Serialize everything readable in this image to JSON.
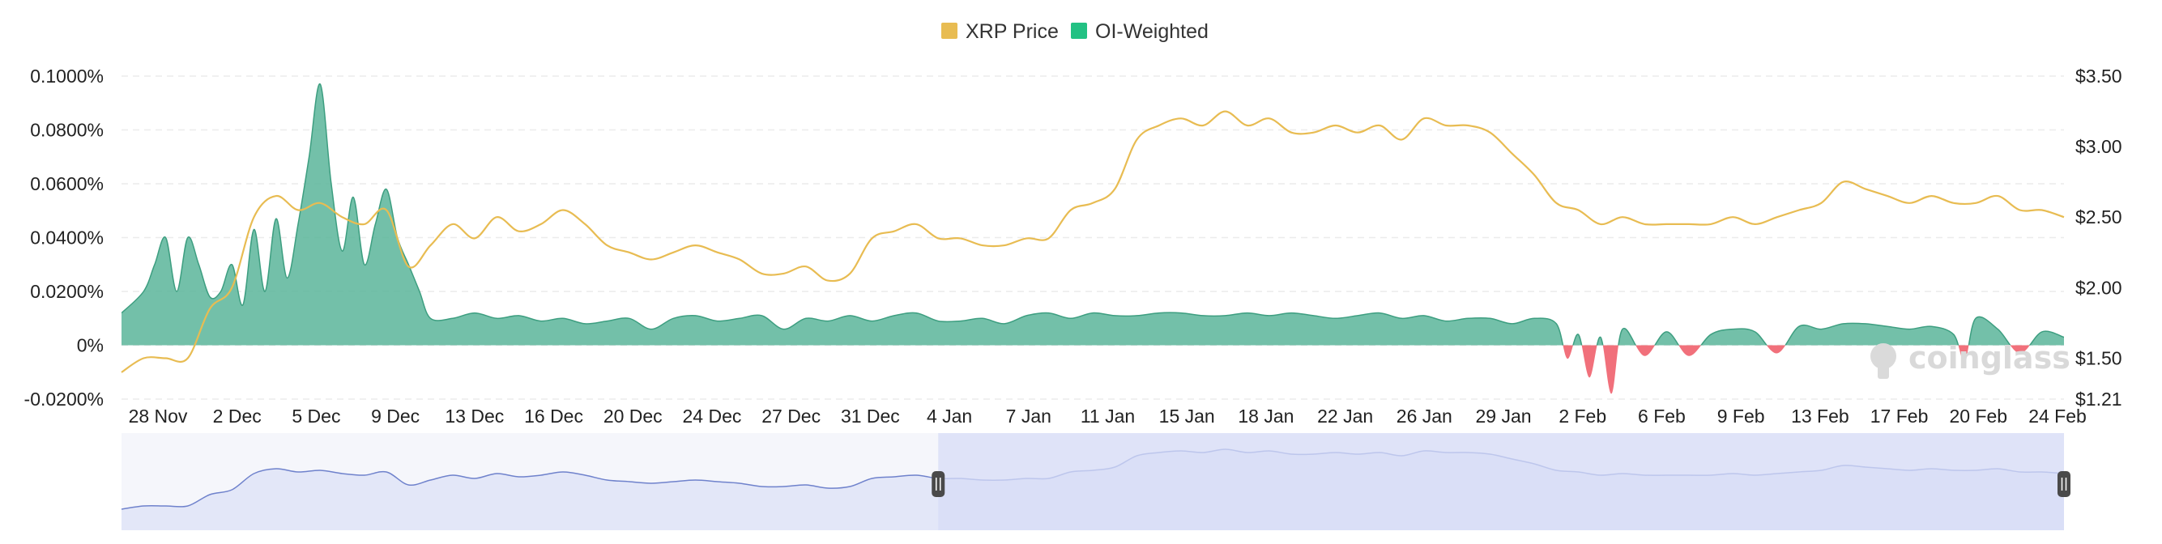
{
  "colors": {
    "price": "#e8bc52",
    "funding_positive": "#5ab59a",
    "funding_negative": "#f0606d",
    "navigator_fill": "#d7dcf7",
    "navigator_line": "#6f82cc",
    "grid": "#ececec"
  },
  "watermark": "coinglass",
  "chart_data": {
    "type": "area",
    "legend": [
      {
        "label": "XRP Price",
        "color": "#e8bc52"
      },
      {
        "label": "OI-Weighted",
        "color": "#22c183"
      }
    ],
    "legend_position": "top-center",
    "grid": true,
    "y_left": {
      "ticks": [
        "0.1000%",
        "0.0800%",
        "0.0600%",
        "0.0400%",
        "0.0200%",
        "0%",
        "-0.0200%"
      ],
      "range": [
        -0.02,
        0.1
      ],
      "unit": "%"
    },
    "y_right": {
      "ticks": [
        "$3.50",
        "$3.00",
        "$2.50",
        "$2.00",
        "$1.50",
        "$1.21"
      ],
      "range": [
        1.21,
        3.5
      ],
      "unit": "USD"
    },
    "x_tick_labels": [
      "28 Nov",
      "2 Dec",
      "5 Dec",
      "9 Dec",
      "13 Dec",
      "16 Dec",
      "20 Dec",
      "24 Dec",
      "27 Dec",
      "31 Dec",
      "4 Jan",
      "7 Jan",
      "11 Jan",
      "15 Jan",
      "18 Jan",
      "22 Jan",
      "26 Jan",
      "29 Jan",
      "2 Feb",
      "6 Feb",
      "9 Feb",
      "13 Feb",
      "17 Feb",
      "20 Feb",
      "24 Feb"
    ],
    "x_range_days": [
      -2,
      86
    ],
    "x_day_origin": "28 Nov",
    "series": [
      {
        "name": "XRP Price",
        "axis": "right",
        "x": [
          -2,
          -1,
          0,
          1,
          2,
          3,
          4,
          5,
          6,
          7,
          8,
          9,
          10,
          11,
          12,
          13,
          14,
          15,
          16,
          17,
          18,
          19,
          20,
          21,
          22,
          23,
          24,
          25,
          26,
          27,
          28,
          29,
          30,
          31,
          32,
          33,
          34,
          35,
          36,
          37,
          38,
          39,
          40,
          41,
          42,
          43,
          44,
          45,
          46,
          47,
          48,
          49,
          50,
          51,
          52,
          53,
          54,
          55,
          56,
          57,
          58,
          59,
          60,
          61,
          62,
          63,
          64,
          65,
          66,
          67,
          68,
          69,
          70,
          71,
          72,
          73,
          74,
          75,
          76,
          77,
          78,
          79,
          80,
          81,
          82,
          83,
          84,
          85,
          86
        ],
        "values": [
          1.4,
          1.5,
          1.5,
          1.5,
          1.85,
          2.0,
          2.5,
          2.65,
          2.55,
          2.6,
          2.5,
          2.45,
          2.55,
          2.15,
          2.3,
          2.45,
          2.35,
          2.5,
          2.4,
          2.45,
          2.55,
          2.45,
          2.3,
          2.25,
          2.2,
          2.25,
          2.3,
          2.25,
          2.2,
          2.1,
          2.1,
          2.15,
          2.05,
          2.1,
          2.35,
          2.4,
          2.45,
          2.35,
          2.35,
          2.3,
          2.3,
          2.35,
          2.35,
          2.55,
          2.6,
          2.7,
          3.05,
          3.15,
          3.2,
          3.15,
          3.25,
          3.15,
          3.2,
          3.1,
          3.1,
          3.15,
          3.1,
          3.15,
          3.05,
          3.2,
          3.15,
          3.15,
          3.1,
          2.95,
          2.8,
          2.6,
          2.55,
          2.45,
          2.5,
          2.45,
          2.45,
          2.45,
          2.45,
          2.5,
          2.45,
          2.5,
          2.55,
          2.6,
          2.75,
          2.7,
          2.65,
          2.6,
          2.65,
          2.6,
          2.6,
          2.65,
          2.55,
          2.55,
          2.5
        ]
      },
      {
        "name": "OI-Weighted",
        "axis": "left",
        "x": [
          -2,
          -1,
          -0.5,
          0,
          0.5,
          1,
          1.5,
          2,
          2.5,
          3,
          3.5,
          4,
          4.5,
          5,
          5.5,
          6,
          6.5,
          7,
          7.5,
          8,
          8.5,
          9,
          9.5,
          10,
          10.5,
          11,
          11.5,
          12,
          13,
          14,
          15,
          16,
          17,
          18,
          19,
          20,
          21,
          22,
          23,
          24,
          25,
          26,
          27,
          28,
          29,
          30,
          31,
          32,
          33,
          34,
          35,
          36,
          37,
          38,
          39,
          40,
          41,
          42,
          43,
          44,
          45,
          46,
          47,
          48,
          49,
          50,
          51,
          52,
          53,
          54,
          55,
          56,
          57,
          58,
          59,
          60,
          61,
          62,
          63,
          63.5,
          64,
          64.5,
          65,
          65.5,
          66,
          67,
          68,
          69,
          70,
          71,
          72,
          73,
          74,
          75,
          76,
          77,
          78,
          79,
          80,
          81,
          81.5,
          82,
          83,
          84,
          85,
          86
        ],
        "values": [
          0.012,
          0.02,
          0.03,
          0.04,
          0.02,
          0.04,
          0.03,
          0.018,
          0.02,
          0.03,
          0.015,
          0.043,
          0.02,
          0.047,
          0.025,
          0.045,
          0.07,
          0.097,
          0.06,
          0.035,
          0.055,
          0.03,
          0.045,
          0.058,
          0.04,
          0.03,
          0.02,
          0.01,
          0.01,
          0.012,
          0.01,
          0.011,
          0.009,
          0.01,
          0.008,
          0.009,
          0.01,
          0.006,
          0.01,
          0.011,
          0.009,
          0.01,
          0.011,
          0.006,
          0.01,
          0.009,
          0.011,
          0.009,
          0.011,
          0.012,
          0.009,
          0.009,
          0.01,
          0.008,
          0.011,
          0.012,
          0.01,
          0.012,
          0.011,
          0.011,
          0.012,
          0.012,
          0.011,
          0.011,
          0.012,
          0.011,
          0.012,
          0.011,
          0.01,
          0.011,
          0.012,
          0.01,
          0.011,
          0.009,
          0.01,
          0.01,
          0.008,
          0.01,
          0.008,
          -0.005,
          0.004,
          -0.012,
          0.003,
          -0.018,
          0.006,
          -0.004,
          0.005,
          -0.004,
          0.004,
          0.006,
          0.005,
          -0.003,
          0.007,
          0.006,
          0.008,
          0.008,
          0.007,
          0.006,
          0.007,
          0.004,
          -0.006,
          0.01,
          0.006,
          -0.003,
          0.005,
          0.003
        ]
      }
    ],
    "navigator": {
      "selection_days": [
        35,
        86
      ]
    }
  }
}
